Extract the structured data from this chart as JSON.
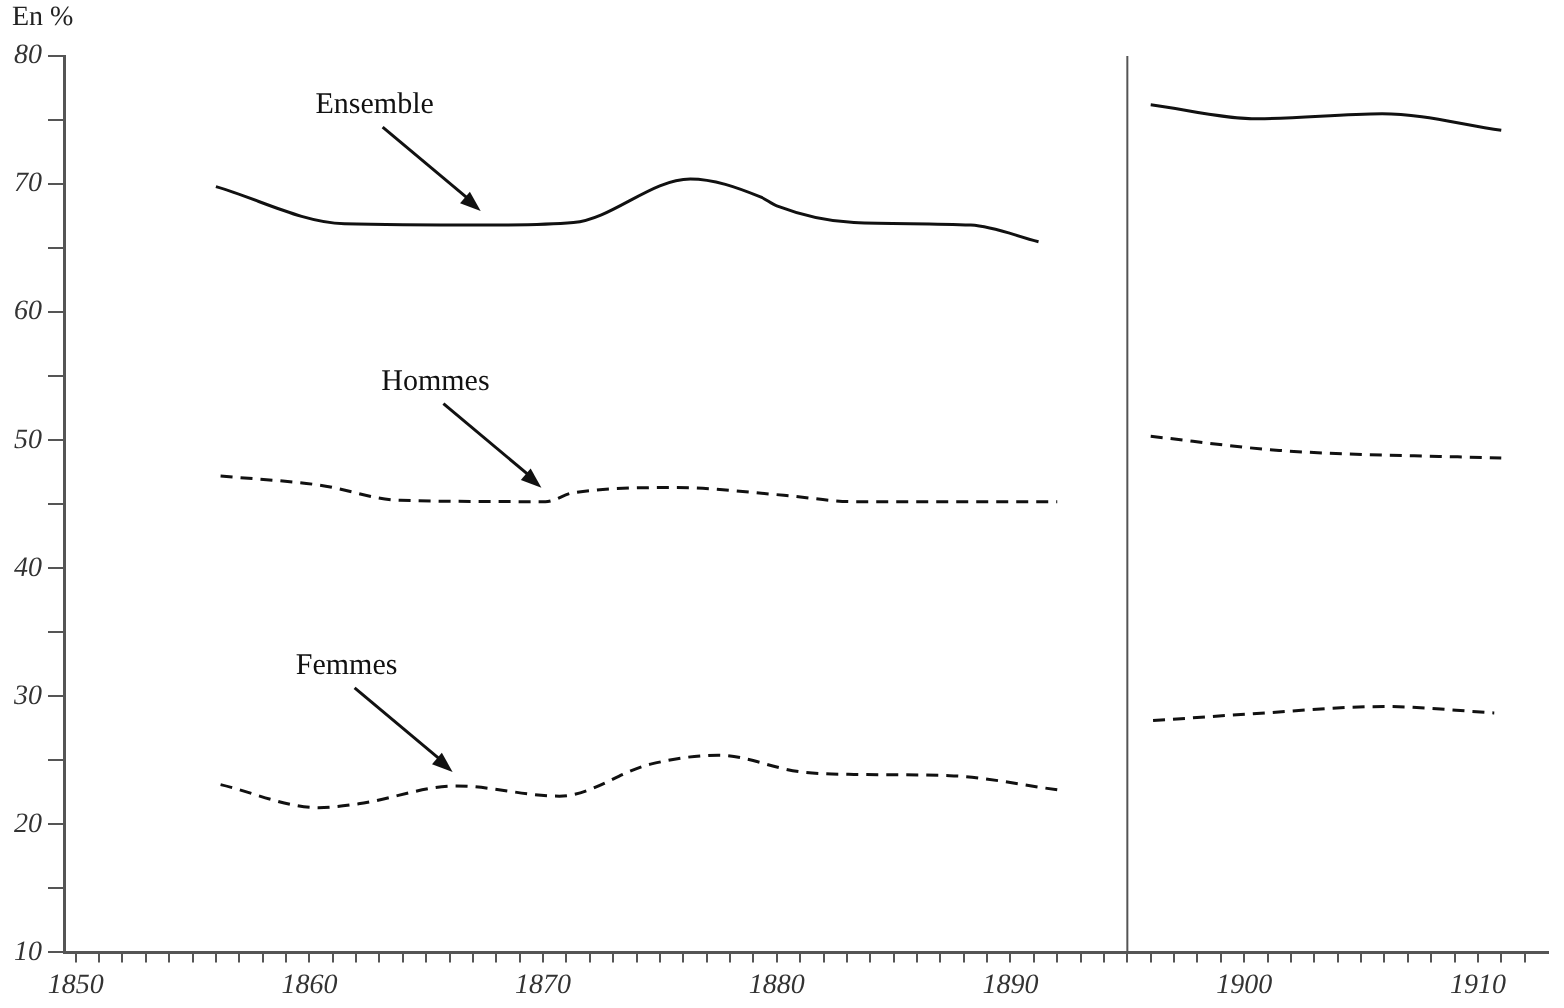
{
  "chart_data": {
    "type": "line",
    "ylabel": "En %",
    "xlim": [
      1849.5,
      1913
    ],
    "ylim": [
      10,
      80
    ],
    "xticks": [
      1850,
      {
        "value": 1851,
        "label": null
      },
      {
        "value": 1852,
        "label": null
      },
      {
        "value": 1853,
        "label": null
      },
      {
        "value": 1854,
        "label": null
      },
      {
        "value": 1855,
        "label": null
      },
      {
        "value": 1856,
        "label": null
      },
      {
        "value": 1857,
        "label": null
      },
      {
        "value": 1858,
        "label": null
      },
      {
        "value": 1859,
        "label": null
      },
      1860,
      {
        "value": 1861,
        "label": null
      },
      {
        "value": 1862,
        "label": null
      },
      {
        "value": 1863,
        "label": null
      },
      {
        "value": 1864,
        "label": null
      },
      {
        "value": 1865,
        "label": null
      },
      {
        "value": 1866,
        "label": null
      },
      {
        "value": 1867,
        "label": null
      },
      {
        "value": 1868,
        "label": null
      },
      {
        "value": 1869,
        "label": null
      },
      1870,
      {
        "value": 1871,
        "label": null
      },
      {
        "value": 1872,
        "label": null
      },
      {
        "value": 1873,
        "label": null
      },
      {
        "value": 1874,
        "label": null
      },
      {
        "value": 1875,
        "label": null
      },
      {
        "value": 1876,
        "label": null
      },
      {
        "value": 1877,
        "label": null
      },
      {
        "value": 1878,
        "label": null
      },
      {
        "value": 1879,
        "label": null
      },
      1880,
      {
        "value": 1881,
        "label": null
      },
      {
        "value": 1882,
        "label": null
      },
      {
        "value": 1883,
        "label": null
      },
      {
        "value": 1884,
        "label": null
      },
      {
        "value": 1885,
        "label": null
      },
      {
        "value": 1886,
        "label": null
      },
      {
        "value": 1887,
        "label": null
      },
      {
        "value": 1888,
        "label": null
      },
      {
        "value": 1889,
        "label": null
      },
      1890,
      {
        "value": 1891,
        "label": null
      },
      {
        "value": 1892,
        "label": null
      },
      {
        "value": 1893,
        "label": null
      },
      {
        "value": 1894,
        "label": null
      },
      {
        "value": 1895,
        "label": null
      },
      {
        "value": 1896,
        "label": null
      },
      {
        "value": 1897,
        "label": null
      },
      {
        "value": 1898,
        "label": null
      },
      {
        "value": 1899,
        "label": null
      },
      1900,
      {
        "value": 1901,
        "label": null
      },
      {
        "value": 1902,
        "label": null
      },
      {
        "value": 1903,
        "label": null
      },
      {
        "value": 1904,
        "label": null
      },
      {
        "value": 1905,
        "label": null
      },
      {
        "value": 1906,
        "label": null
      },
      {
        "value": 1907,
        "label": null
      },
      {
        "value": 1908,
        "label": null
      },
      {
        "value": 1909,
        "label": null
      },
      1910,
      {
        "value": 1911,
        "label": null
      },
      {
        "value": 1912,
        "label": null
      }
    ],
    "yticks": [
      10,
      {
        "value": 15,
        "label": null
      },
      20,
      {
        "value": 25,
        "label": null
      },
      30,
      {
        "value": 35,
        "label": null
      },
      40,
      {
        "value": 45,
        "label": null
      },
      50,
      {
        "value": 55,
        "label": null
      },
      60,
      {
        "value": 65,
        "label": null
      },
      70,
      {
        "value": 75,
        "label": null
      },
      80
    ],
    "grid": false,
    "legend": false,
    "marker": "none",
    "ref_lines": [
      {
        "axis": "x",
        "value": 1895,
        "color": "#555555"
      }
    ],
    "series": [
      {
        "name": "Ensemble",
        "color": "#111111",
        "line_style": "solid",
        "x": [
          1856,
          1861.5,
          1867.5,
          1871.3,
          1876.3,
          1879.3,
          1880,
          1883.3,
          1888.3,
          1891.2,
          1894,
          1896,
          1900.6,
          1905.9,
          1911
        ],
        "values": [
          69.8,
          66.9,
          66.8,
          67,
          70.4,
          69,
          68.3,
          67,
          66.8,
          65.5,
          null,
          76.2,
          75.1,
          75.5,
          74.2
        ]
      },
      {
        "name": "Hommes",
        "color": "#111111",
        "line_style": "dashed",
        "x": [
          1856.2,
          1860.4,
          1863.9,
          1870.1,
          1871.3,
          1875.7,
          1880.3,
          1883.3,
          1892,
          1894,
          1896,
          1901.5,
          1911
        ],
        "values": [
          47.2,
          46.5,
          45.3,
          45.2,
          45.9,
          46.3,
          45.7,
          45.2,
          45.2,
          null,
          50.3,
          49.2,
          48.6
        ]
      },
      {
        "name": "Femmes",
        "color": "#111111",
        "line_style": "dashed",
        "x": [
          1856.2,
          1860.4,
          1862.1,
          1866.3,
          1870.7,
          1874.6,
          1877.5,
          1881,
          1883.3,
          1887.4,
          1892,
          1894,
          1896.1,
          1900.1,
          1906,
          1910.7
        ],
        "values": [
          23.1,
          21.3,
          21.6,
          23,
          22.2,
          24.7,
          25.4,
          24.1,
          23.9,
          23.8,
          22.7,
          null,
          28.1,
          28.6,
          29.2,
          28.7
        ]
      }
    ]
  }
}
